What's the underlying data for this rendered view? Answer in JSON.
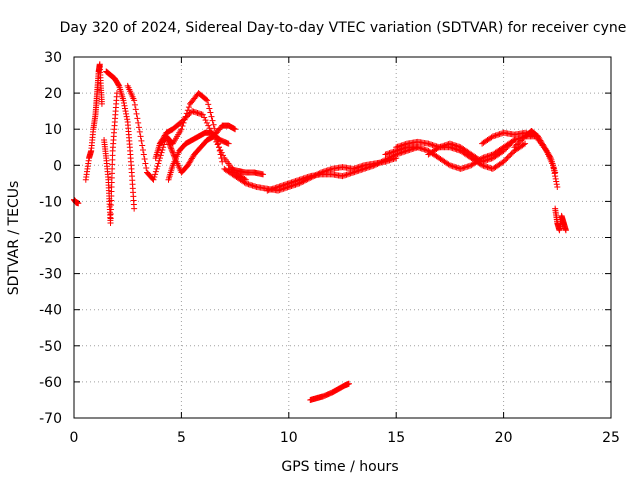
{
  "chart_data": {
    "type": "scatter",
    "title": "Day 320 of 2024, Sidereal Day-to-day VTEC variation (SDTVAR) for receiver cyne",
    "xlabel": "GPS time / hours",
    "ylabel": "SDTVAR / TECUs",
    "xlim": [
      0,
      25
    ],
    "ylim": [
      -70,
      30
    ],
    "xticks": [
      0,
      5,
      10,
      15,
      20,
      25
    ],
    "yticks": [
      -70,
      -60,
      -50,
      -40,
      -30,
      -20,
      -10,
      0,
      10,
      20,
      30
    ],
    "grid": true,
    "marker": "+",
    "color": "#ff0000",
    "series": [
      {
        "name": "trace-a",
        "x": [
          0.0,
          0.1,
          0.2
        ],
        "y": [
          -9.5,
          -10.3,
          -10.5
        ]
      },
      {
        "name": "trace-b",
        "x": [
          0.55,
          0.7,
          0.8,
          0.9,
          1.0,
          1.05,
          1.1,
          1.15,
          1.2,
          1.25,
          1.3
        ],
        "y": [
          -4,
          2,
          4,
          10,
          14,
          18,
          22,
          26,
          28,
          22,
          17
        ]
      },
      {
        "name": "trace-c",
        "x": [
          1.4,
          1.5,
          1.6,
          1.65,
          1.7,
          1.75,
          1.8,
          1.9,
          2.0
        ],
        "y": [
          7,
          2,
          -4,
          -10,
          -16,
          -6,
          4,
          12,
          20
        ]
      },
      {
        "name": "trace-d",
        "x": [
          1.5,
          1.7,
          1.9,
          2.1,
          2.3,
          2.5,
          2.6,
          2.7,
          2.8
        ],
        "y": [
          26,
          25,
          24,
          22,
          18,
          12,
          5,
          -3,
          -12
        ]
      },
      {
        "name": "trace-e",
        "x": [
          2.5,
          2.8,
          3.1,
          3.4,
          3.7,
          4.0,
          4.3,
          4.6,
          5.0,
          5.4,
          5.8,
          6.2,
          6.6,
          6.9
        ],
        "y": [
          22,
          18,
          8,
          -2,
          -4,
          2,
          8,
          6,
          10,
          17,
          20,
          18,
          9,
          1
        ]
      },
      {
        "name": "trace-f",
        "x": [
          3.8,
          4.0,
          4.3,
          4.5,
          4.7,
          5.0,
          5.3,
          5.6,
          5.9,
          6.2,
          6.5,
          6.9,
          7.2,
          7.5
        ],
        "y": [
          2,
          6,
          8,
          5,
          2,
          -2,
          0,
          3,
          5,
          7,
          8,
          11,
          11,
          10
        ]
      },
      {
        "name": "trace-g",
        "x": [
          4.0,
          4.3,
          4.6,
          5.0,
          5.5,
          6.0,
          6.5,
          7.0,
          7.5,
          8.0
        ],
        "y": [
          6,
          9,
          10,
          12,
          15,
          14,
          8,
          2,
          -2,
          -4
        ]
      },
      {
        "name": "trace-h",
        "x": [
          4.4,
          4.6,
          4.9,
          5.2,
          5.5,
          5.8,
          6.1,
          6.4,
          6.8,
          7.2
        ],
        "y": [
          -4,
          0,
          4,
          6,
          7,
          8,
          9,
          9,
          7,
          6
        ]
      },
      {
        "name": "trace-i",
        "x": [
          7.0,
          7.5,
          8.0,
          8.5,
          9.0,
          9.5,
          10.0,
          10.5,
          11.0,
          11.5,
          12.0,
          12.5,
          13.0,
          13.5,
          14.0,
          14.5,
          15.0
        ],
        "y": [
          -1,
          -3,
          -5,
          -6,
          -6.5,
          -7,
          -6,
          -5,
          -3.5,
          -2,
          -1,
          -0.5,
          -1,
          0,
          0.5,
          1,
          2
        ]
      },
      {
        "name": "trace-j",
        "x": [
          7.2,
          7.6,
          8.0,
          8.4,
          8.8
        ],
        "y": [
          -1,
          -1.5,
          -2,
          -2,
          -2.5
        ]
      },
      {
        "name": "trace-k",
        "x": [
          9.0,
          9.5,
          10.0,
          10.5,
          11.0,
          11.5,
          12.0,
          12.5,
          13.0,
          13.5,
          14.0,
          14.5,
          15.0,
          15.5,
          16.0
        ],
        "y": [
          -7,
          -6,
          -5,
          -4,
          -3,
          -2.5,
          -2.5,
          -3,
          -2,
          -1,
          0,
          1.5,
          3,
          4,
          5
        ]
      },
      {
        "name": "trace-l",
        "x": [
          11.0,
          11.3,
          11.6,
          12.0,
          12.3,
          12.6,
          12.8
        ],
        "y": [
          -65,
          -64.5,
          -64,
          -63,
          -62,
          -61,
          -60.5
        ]
      },
      {
        "name": "trace-m",
        "x": [
          14.5,
          15.0,
          15.5,
          16.0,
          16.5,
          17.0,
          17.5,
          18.0,
          18.5,
          19.0,
          19.5,
          20.0,
          20.5,
          21.0,
          21.5
        ],
        "y": [
          3,
          4,
          5,
          5,
          4,
          2,
          0,
          -1,
          0,
          2,
          3,
          5,
          7,
          8,
          8
        ]
      },
      {
        "name": "trace-n",
        "x": [
          15.0,
          15.5,
          16.0,
          16.5,
          17.0,
          17.5,
          18.0,
          18.5,
          19.0,
          19.5,
          20.0,
          20.5,
          21.0
        ],
        "y": [
          5,
          6,
          6.5,
          6,
          5,
          5,
          4,
          2,
          0,
          -1,
          1,
          4,
          6
        ]
      },
      {
        "name": "trace-o",
        "x": [
          16.5,
          17.0,
          17.5,
          18.0,
          18.5,
          19.0,
          19.5,
          20.0,
          20.5
        ],
        "y": [
          3,
          5,
          6,
          5,
          3,
          1,
          2,
          4,
          7
        ]
      },
      {
        "name": "trace-p",
        "x": [
          19.0,
          19.5,
          20.0,
          20.5,
          21.0,
          21.5,
          22.0,
          22.3,
          22.5
        ],
        "y": [
          6,
          8,
          9,
          8.5,
          9,
          8,
          4,
          0,
          -6
        ]
      },
      {
        "name": "trace-q",
        "x": [
          20.5,
          21.0,
          21.3,
          21.6,
          21.9,
          22.2,
          22.4
        ],
        "y": [
          5,
          8,
          9.5,
          8,
          5,
          2,
          -2
        ]
      },
      {
        "name": "trace-r",
        "x": [
          22.4,
          22.5,
          22.6,
          22.7,
          22.8,
          22.9
        ],
        "y": [
          -12,
          -16,
          -18,
          -14,
          -16,
          -18
        ]
      }
    ]
  }
}
